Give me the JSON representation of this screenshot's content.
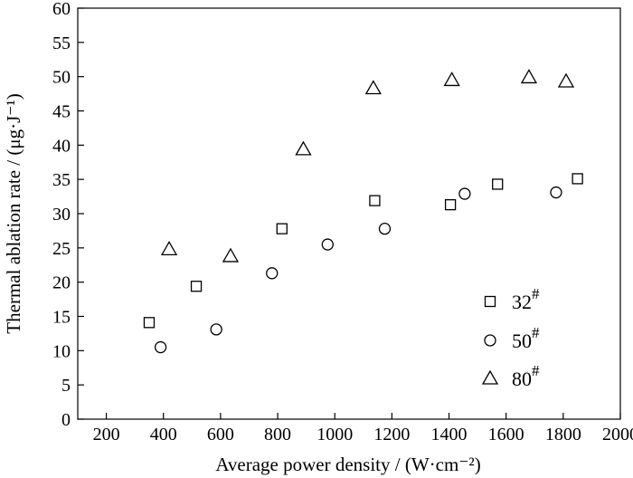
{
  "chart_data": {
    "type": "scatter",
    "title": "",
    "xlabel": "Average power density / (W·cm⁻²)",
    "ylabel": "Thermal ablation rate / (μg·J⁻¹)",
    "xlim": [
      100,
      2000
    ],
    "ylim": [
      0,
      60
    ],
    "xticks": [
      200,
      400,
      600,
      800,
      1000,
      1200,
      1400,
      1600,
      1800,
      2000
    ],
    "yticks": [
      0,
      5,
      10,
      15,
      20,
      25,
      30,
      35,
      40,
      45,
      50,
      55,
      60
    ],
    "grid": false,
    "legend_position": "bottom-right",
    "series": [
      {
        "name": "32#",
        "marker": "square",
        "x": [
          350,
          515,
          815,
          1140,
          1405,
          1570,
          1850
        ],
        "y": [
          14.1,
          19.4,
          27.8,
          31.9,
          31.3,
          34.3,
          35.1
        ]
      },
      {
        "name": "50#",
        "marker": "circle",
        "x": [
          390,
          585,
          780,
          975,
          1175,
          1455,
          1775
        ],
        "y": [
          10.5,
          13.1,
          21.3,
          25.5,
          27.8,
          32.9,
          33.1
        ]
      },
      {
        "name": "80#",
        "marker": "triangle",
        "x": [
          420,
          635,
          890,
          1135,
          1410,
          1680,
          1810
        ],
        "y": [
          24.8,
          23.8,
          39.4,
          48.3,
          49.5,
          49.9,
          49.3
        ]
      }
    ]
  }
}
